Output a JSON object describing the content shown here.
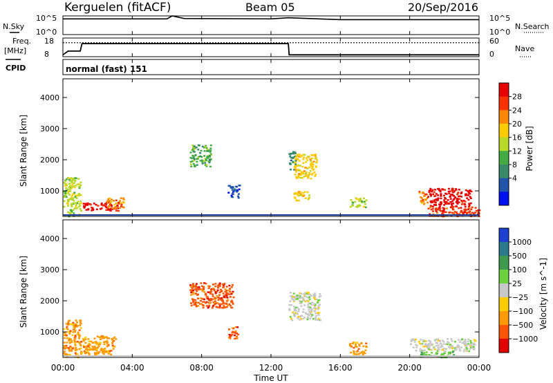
{
  "header": {
    "station": "Kerguelen (fitACF)",
    "beam": "Beam 05",
    "date": "20/Sep/2016"
  },
  "top_panels": {
    "nsky_label": "N.Sky",
    "nsky_ticks": [
      "10^5",
      "10^0"
    ],
    "nsearch_label": "N.Search",
    "nsearch_ticks": [
      "10^5",
      "10^0"
    ],
    "freq_label_1": "Freq.",
    "freq_label_2": "[MHz]",
    "freq_ticks": [
      "18",
      "8"
    ],
    "nave_label": "Nave",
    "nave_ticks": [
      "60",
      "0"
    ],
    "cpid_label": "CPID",
    "cpid_text": "normal (fast) 151"
  },
  "axes": {
    "xlabel": "Time UT",
    "xticks": [
      "00:00",
      "04:00",
      "08:00",
      "12:00",
      "16:00",
      "20:00",
      "00:00"
    ],
    "ylabel": "Slant Range [km]",
    "yticks": [
      "4000",
      "3000",
      "2000",
      "1000"
    ]
  },
  "colorbars": {
    "power": {
      "label": "Power [dB]",
      "ticks": [
        "28",
        "24",
        "20",
        "16",
        "12",
        "8",
        "4"
      ],
      "colors": [
        "#e60000",
        "#ff3300",
        "#ff8800",
        "#ffcc00",
        "#b8d82a",
        "#44aa44",
        "#3a8a6a",
        "#2255aa",
        "#0010ee"
      ]
    },
    "velocity": {
      "label": "Velocity [m s^-1]",
      "ticks": [
        "1000",
        "500",
        "100",
        "25",
        "−25",
        "−100",
        "−500",
        "−1000"
      ],
      "colors": [
        "#1f3fd0",
        "#2a7a8a",
        "#3f9a50",
        "#6cd040",
        "#c8c8c8",
        "#ffcc00",
        "#ff9900",
        "#ff5500",
        "#e00000"
      ]
    }
  },
  "chart_data": [
    {
      "type": "line",
      "title": "N.Sky / N.Search",
      "x": [
        0,
        6,
        6.3,
        7,
        12,
        13,
        16,
        24
      ],
      "series": [
        {
          "name": "N.Sky",
          "values": [
            4.2,
            4.2,
            5,
            4.3,
            4.2,
            4.5,
            4.0,
            4.0
          ]
        }
      ],
      "ylim": [
        0,
        5
      ]
    },
    {
      "type": "line",
      "title": "Freq. / Nave",
      "x": [
        0,
        0.3,
        1.0,
        1.1,
        13.0,
        13.05,
        24
      ],
      "series": [
        {
          "name": "Freq.",
          "values": [
            9.0,
            11.0,
            11.0,
            15.0,
            15.0,
            9.0,
            9.0
          ]
        },
        {
          "name": "Nave",
          "values": [
            45,
            45,
            45,
            45,
            45,
            45,
            45
          ]
        }
      ],
      "ylim": [
        8,
        18
      ]
    },
    {
      "type": "heatmap",
      "title": "Power [dB]",
      "x_unit": "hours UT",
      "y_unit": "km",
      "xlim": [
        0,
        24
      ],
      "ylim": [
        180,
        4600
      ],
      "regions": [
        {
          "t0": 0.0,
          "t1": 1.0,
          "r0": 200,
          "r1": 1450,
          "level": 4
        },
        {
          "t0": 1.0,
          "t1": 3.2,
          "r0": 380,
          "r1": 650,
          "level": 0
        },
        {
          "t0": 2.5,
          "t1": 3.5,
          "r0": 450,
          "r1": 800,
          "level": 2
        },
        {
          "t0": 7.3,
          "t1": 8.5,
          "r0": 1800,
          "r1": 2500,
          "level": 5
        },
        {
          "t0": 9.5,
          "t1": 10.2,
          "r0": 800,
          "r1": 1200,
          "level": 7
        },
        {
          "t0": 13.0,
          "t1": 13.4,
          "r0": 1700,
          "r1": 2300,
          "level": 6
        },
        {
          "t0": 13.3,
          "t1": 14.6,
          "r0": 1400,
          "r1": 2200,
          "level": 3
        },
        {
          "t0": 13.3,
          "t1": 14.2,
          "r0": 700,
          "r1": 1000,
          "level": 3
        },
        {
          "t0": 16.5,
          "t1": 17.5,
          "r0": 500,
          "r1": 800,
          "level": 4
        },
        {
          "t0": 20.4,
          "t1": 21.0,
          "r0": 600,
          "r1": 1000,
          "level": 2
        },
        {
          "t0": 21.0,
          "t1": 23.5,
          "r0": 500,
          "r1": 1100,
          "level": 0
        },
        {
          "t0": 21.0,
          "t1": 24.0,
          "r0": 200,
          "r1": 500,
          "level": 1
        }
      ]
    },
    {
      "type": "heatmap",
      "title": "Velocity [m s^-1]",
      "x_unit": "hours UT",
      "y_unit": "km",
      "xlim": [
        0,
        24
      ],
      "ylim": [
        180,
        4600
      ],
      "regions": [
        {
          "t0": 0.0,
          "t1": 1.0,
          "r0": 200,
          "r1": 1400,
          "level": 6
        },
        {
          "t0": 1.0,
          "t1": 3.0,
          "r0": 300,
          "r1": 900,
          "level": 6
        },
        {
          "t0": 7.3,
          "t1": 9.8,
          "r0": 1800,
          "r1": 2600,
          "level": 7
        },
        {
          "t0": 9.5,
          "t1": 10.1,
          "r0": 800,
          "r1": 1200,
          "level": 7
        },
        {
          "t0": 13.0,
          "t1": 14.8,
          "r0": 1400,
          "r1": 2300,
          "level": 4
        },
        {
          "t0": 16.5,
          "t1": 17.5,
          "r0": 300,
          "r1": 700,
          "level": 6
        },
        {
          "t0": 20.0,
          "t1": 23.8,
          "r0": 400,
          "r1": 800,
          "level": 4
        },
        {
          "t0": 20.5,
          "t1": 22.5,
          "r0": 200,
          "r1": 400,
          "level": 3
        }
      ]
    }
  ]
}
